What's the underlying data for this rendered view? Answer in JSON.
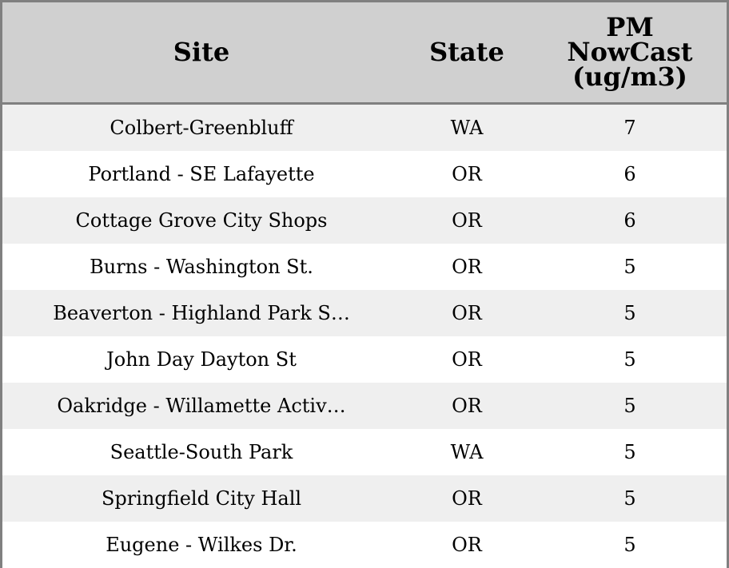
{
  "chart_data": {
    "type": "table",
    "columns": [
      "Site",
      "State",
      "PM NowCast (ug/m3)"
    ],
    "header_lines": [
      [
        "Site"
      ],
      [
        "State"
      ],
      [
        "PM",
        "NowCast",
        "(ug/m3)"
      ]
    ],
    "rows": [
      [
        "Colbert-Greenbluff",
        "WA",
        "7"
      ],
      [
        "Portland - SE Lafayette",
        "OR",
        "6"
      ],
      [
        "Cottage Grove City Shops",
        "OR",
        "6"
      ],
      [
        "Burns - Washington St.",
        "OR",
        "5"
      ],
      [
        "Beaverton - Highland Park S…",
        "OR",
        "5"
      ],
      [
        "John Day Dayton St",
        "OR",
        "5"
      ],
      [
        "Oakridge - Willamette Activ…",
        "OR",
        "5"
      ],
      [
        "Seattle-South Park",
        "WA",
        "5"
      ],
      [
        "Springfield City Hall",
        "OR",
        "5"
      ],
      [
        "Eugene - Wilkes Dr.",
        "OR",
        "5"
      ]
    ],
    "colors": {
      "header_bg": "#d0d0d0",
      "row_alt_bg": "#efefef",
      "row_bg": "#ffffff",
      "border": "#808080"
    }
  }
}
